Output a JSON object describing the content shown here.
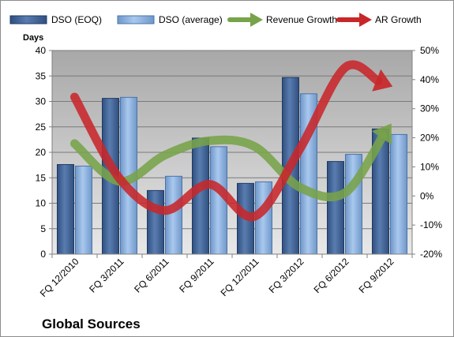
{
  "chart_data": {
    "type": "bar",
    "title": "",
    "company": "Global Sources",
    "ylabel_left": "Days",
    "ylabel_right": "",
    "categories": [
      "FQ 12/2010",
      "FQ 3/2011",
      "FQ 6/2011",
      "FQ 9/2011",
      "FQ 12/2011",
      "FQ 3/2012",
      "FQ 6/2012",
      "FQ 9/2012"
    ],
    "ylim_left": [
      0,
      40
    ],
    "yticks_left": [
      0,
      5,
      10,
      15,
      20,
      25,
      30,
      35,
      40
    ],
    "ylim_right": [
      -20,
      50
    ],
    "yticks_right": [
      -20,
      -10,
      0,
      10,
      20,
      30,
      40,
      50
    ],
    "right_axis_format": "percent",
    "grid": true,
    "legend_position": "top",
    "series": [
      {
        "name": "DSO (EOQ)",
        "type": "bar",
        "axis": "left",
        "color": "#4f6f9f",
        "values": [
          17.6,
          30.6,
          12.5,
          22.8,
          13.9,
          34.7,
          18.2,
          24.6
        ]
      },
      {
        "name": "DSO (average)",
        "type": "bar",
        "axis": "left",
        "color": "#8eb4e3",
        "values": [
          17.3,
          30.8,
          15.3,
          21.1,
          14.2,
          31.5,
          19.6,
          23.5
        ]
      },
      {
        "name": "Revenue Growth",
        "type": "line",
        "axis": "right",
        "unit": "%",
        "color": "#77a349",
        "values": [
          18,
          5,
          14,
          19,
          17,
          3,
          1,
          24
        ]
      },
      {
        "name": "AR Growth",
        "type": "line",
        "axis": "right",
        "unit": "%",
        "color": "#c8272a",
        "values": [
          34,
          6,
          -5,
          4,
          -7,
          16,
          44,
          38
        ]
      }
    ]
  }
}
